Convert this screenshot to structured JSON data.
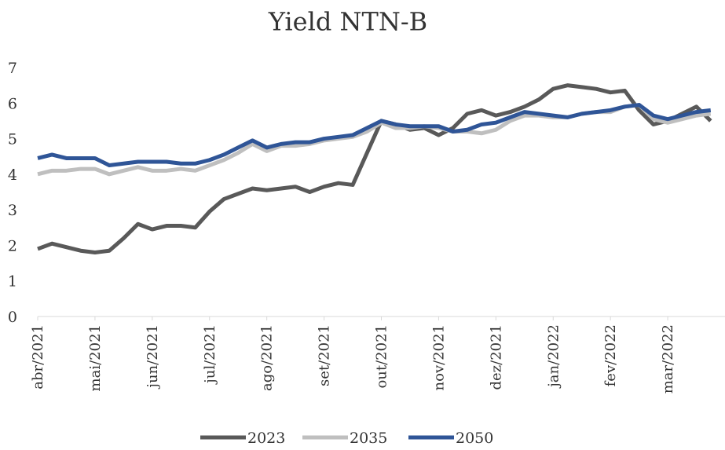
{
  "chart_data": {
    "type": "line",
    "title": "Yield NTN-B",
    "categories": [
      "abr/2021",
      null,
      null,
      null,
      "mai/2021",
      null,
      null,
      null,
      "jun/2021",
      null,
      null,
      null,
      "jul/2021",
      null,
      null,
      null,
      "ago/2021",
      null,
      null,
      null,
      "set/2021",
      null,
      null,
      null,
      "out/2021",
      null,
      null,
      null,
      "nov/2021",
      null,
      null,
      null,
      "dez/2021",
      null,
      null,
      null,
      "jan/2022",
      null,
      null,
      null,
      "fev/2022",
      null,
      null,
      null,
      "mar/2022",
      null,
      null,
      null
    ],
    "series": [
      {
        "name": "2023",
        "color": "#595959",
        "values": [
          1.9,
          2.05,
          1.95,
          1.85,
          1.8,
          1.85,
          2.2,
          2.6,
          2.45,
          2.55,
          2.55,
          2.5,
          2.95,
          3.3,
          3.45,
          3.6,
          3.55,
          3.6,
          3.65,
          3.5,
          3.65,
          3.75,
          3.7,
          4.6,
          5.5,
          5.4,
          5.25,
          5.3,
          5.1,
          5.3,
          5.7,
          5.8,
          5.65,
          5.75,
          5.9,
          6.1,
          6.4,
          6.5,
          6.45,
          6.4,
          6.3,
          6.35,
          5.8,
          5.4,
          5.5,
          5.7,
          5.9,
          5.5
        ]
      },
      {
        "name": "2035",
        "color": "#bfbfbf",
        "values": [
          4.0,
          4.1,
          4.1,
          4.15,
          4.15,
          4.0,
          4.1,
          4.2,
          4.1,
          4.1,
          4.15,
          4.1,
          4.25,
          4.4,
          4.6,
          4.85,
          4.65,
          4.8,
          4.8,
          4.85,
          4.95,
          5.0,
          5.05,
          5.2,
          5.45,
          5.3,
          5.3,
          5.35,
          5.3,
          5.2,
          5.2,
          5.15,
          5.25,
          5.5,
          5.65,
          5.65,
          5.6,
          5.6,
          5.7,
          5.75,
          5.75,
          5.9,
          5.95,
          5.55,
          5.45,
          5.55,
          5.65,
          5.7
        ]
      },
      {
        "name": "2050",
        "color": "#2f5597",
        "values": [
          4.45,
          4.55,
          4.45,
          4.45,
          4.45,
          4.25,
          4.3,
          4.35,
          4.35,
          4.35,
          4.3,
          4.3,
          4.4,
          4.55,
          4.75,
          4.95,
          4.75,
          4.85,
          4.9,
          4.9,
          5.0,
          5.05,
          5.1,
          5.3,
          5.5,
          5.4,
          5.35,
          5.35,
          5.35,
          5.2,
          5.25,
          5.4,
          5.45,
          5.6,
          5.75,
          5.7,
          5.65,
          5.6,
          5.7,
          5.75,
          5.8,
          5.9,
          5.95,
          5.65,
          5.55,
          5.65,
          5.75,
          5.8
        ]
      }
    ],
    "ylim": [
      0,
      7
    ],
    "yticks": [
      0,
      1,
      2,
      3,
      4,
      5,
      6,
      7
    ]
  }
}
